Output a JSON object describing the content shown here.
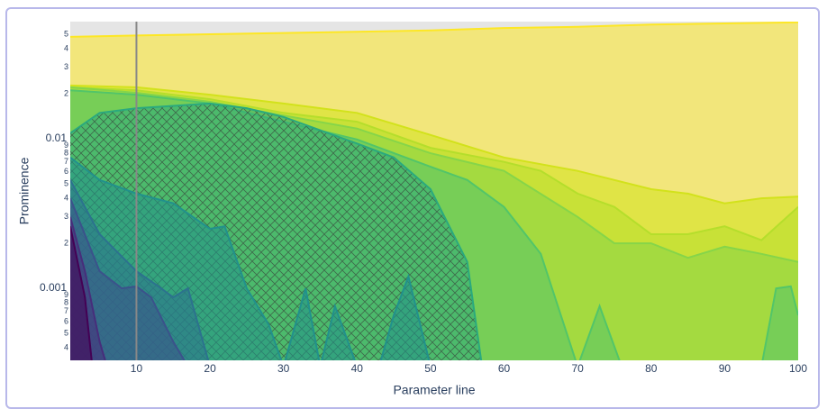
{
  "chart_data": {
    "type": "area",
    "x_label": "Parameter line",
    "y_label": "Prominence",
    "log_y": true,
    "xlim": [
      1,
      100
    ],
    "ylim": [
      0.00033,
      0.0607
    ],
    "xticks": [
      10,
      20,
      30,
      40,
      50,
      60,
      70,
      80,
      90,
      100
    ],
    "yticks": [
      {
        "value": 0.05,
        "label": "5"
      },
      {
        "value": 0.04,
        "label": "4"
      },
      {
        "value": 0.03,
        "label": "3"
      },
      {
        "value": 0.02,
        "label": "2"
      },
      0.01,
      {
        "value": 0.009,
        "label": "9"
      },
      {
        "value": 0.008,
        "label": "8"
      },
      {
        "value": 0.007,
        "label": "7"
      },
      {
        "value": 0.006,
        "label": "6"
      },
      {
        "value": 0.005,
        "label": "5"
      },
      {
        "value": 0.004,
        "label": "4"
      },
      {
        "value": 0.003,
        "label": "3"
      },
      {
        "value": 0.002,
        "label": "2"
      },
      0.001,
      {
        "value": 0.0009,
        "label": "9"
      },
      {
        "value": 0.0008,
        "label": "8"
      },
      {
        "value": 0.0007,
        "label": "7"
      },
      {
        "value": 0.0006,
        "label": "6"
      },
      {
        "value": 0.0005,
        "label": "5"
      },
      {
        "value": 0.0004,
        "label": "4"
      }
    ],
    "vline": 10,
    "vline_color": "#888888",
    "background": "#e5e5e5",
    "series": [
      {
        "color": "#fde725",
        "x": [
          1,
          10,
          20,
          30,
          40,
          50,
          60,
          70,
          80,
          90,
          100
        ],
        "values": [
          0.048,
          0.049,
          0.05,
          0.051,
          0.052,
          0.053,
          0.055,
          0.056,
          0.058,
          0.059,
          0.06
        ]
      },
      {
        "color": "#d2e21b",
        "x": [
          1,
          10,
          20,
          30,
          40,
          50,
          60,
          70,
          80,
          85,
          90,
          95,
          100
        ],
        "values": [
          0.0227,
          0.0221,
          0.0197,
          0.0172,
          0.0149,
          0.0106,
          0.0075,
          0.0061,
          0.0046,
          0.0043,
          0.0037,
          0.004,
          0.0041
        ]
      },
      {
        "color": "#b5de2b",
        "x": [
          1,
          10,
          20,
          30,
          40,
          50,
          60,
          65,
          70,
          75,
          80,
          85,
          90,
          95,
          100
        ],
        "values": [
          0.0221,
          0.0211,
          0.0184,
          0.0149,
          0.013,
          0.0087,
          0.007,
          0.0061,
          0.0043,
          0.0035,
          0.0023,
          0.0023,
          0.0026,
          0.0021,
          0.0035
        ]
      },
      {
        "color": "#86d549",
        "x": [
          1,
          10,
          20,
          30,
          40,
          50,
          60,
          70,
          75,
          80,
          85,
          90,
          95,
          100
        ],
        "values": [
          0.0221,
          0.0203,
          0.0177,
          0.0143,
          0.0117,
          0.008,
          0.0061,
          0.003,
          0.002,
          0.002,
          0.0016,
          0.0019,
          0.0017,
          0.0015
        ]
      },
      {
        "color": "#52c569",
        "x": [
          1,
          10,
          20,
          30,
          40,
          50,
          55,
          60,
          65,
          70,
          73,
          76,
          95,
          97,
          99,
          100
        ],
        "values": [
          0.0211,
          0.0197,
          0.0172,
          0.013,
          0.0099,
          0.0065,
          0.0053,
          0.0035,
          0.0017,
          0.0003,
          0.00076,
          0.0003,
          0.0003,
          0.001,
          0.00103,
          0.00066
        ]
      },
      {
        "color": "#2aa97e",
        "hatch": true,
        "x": [
          1,
          5,
          10,
          20,
          25,
          30,
          40,
          45,
          50,
          55,
          57
        ],
        "values": [
          0.0109,
          0.0149,
          0.016,
          0.0172,
          0.016,
          0.014,
          0.0093,
          0.0075,
          0.0046,
          0.0015,
          0.0003
        ]
      },
      {
        "color": "#21918c",
        "x": [
          1,
          5,
          10,
          15,
          20,
          22,
          25,
          28,
          30,
          33,
          35,
          37,
          40,
          43,
          45,
          47,
          50
        ],
        "values": [
          0.0075,
          0.0053,
          0.0043,
          0.0037,
          0.0025,
          0.0026,
          0.001,
          0.00057,
          0.0003,
          0.001,
          0.0003,
          0.00076,
          0.0003,
          0.0003,
          0.00066,
          0.0012,
          0.0003
        ]
      },
      {
        "color": "#2c728e",
        "x": [
          1,
          5,
          10,
          13,
          15,
          17,
          20
        ],
        "values": [
          0.0053,
          0.0023,
          0.0013,
          0.00103,
          0.00087,
          0.001,
          0.0003
        ]
      },
      {
        "color": "#3b528b",
        "x": [
          1,
          5,
          8,
          10,
          12,
          15,
          17
        ],
        "values": [
          0.004,
          0.0013,
          0.001,
          0.00103,
          0.00087,
          0.00044,
          0.0003
        ]
      },
      {
        "color": "#472d7b",
        "x": [
          1,
          3,
          5,
          6
        ],
        "values": [
          0.003,
          0.0013,
          0.00044,
          0.0003
        ]
      },
      {
        "color": "#440154",
        "x": [
          1,
          3,
          4
        ],
        "values": [
          0.0026,
          0.00087,
          0.0003
        ]
      }
    ]
  }
}
